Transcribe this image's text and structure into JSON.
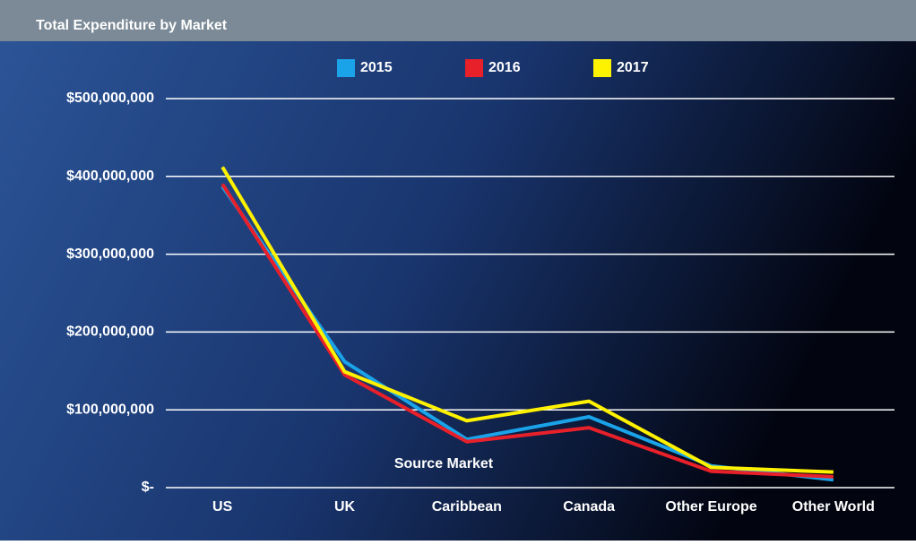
{
  "chart_data": {
    "type": "line",
    "title": "Total Expenditure by Market",
    "x_label": "Source Market",
    "categories": [
      "US",
      "UK",
      "Caribbean",
      "Canada",
      "Other Europe",
      "Other World"
    ],
    "series": [
      {
        "name": "2015",
        "color": "#1aa3e8",
        "values": [
          387000000,
          162000000,
          62000000,
          91000000,
          28000000,
          10000000
        ]
      },
      {
        "name": "2016",
        "color": "#e8202a",
        "values": [
          390000000,
          145000000,
          59000000,
          77000000,
          21000000,
          14000000
        ]
      },
      {
        "name": "2017",
        "color": "#fff200",
        "values": [
          412000000,
          149000000,
          86000000,
          111000000,
          26000000,
          20000000
        ]
      }
    ],
    "ylim": [
      0,
      500000000
    ],
    "yticks": [
      {
        "value": 0,
        "label": "$-"
      },
      {
        "value": 100000000,
        "label": "$100,000,000"
      },
      {
        "value": 200000000,
        "label": "$200,000,000"
      },
      {
        "value": 300000000,
        "label": "$300,000,000"
      },
      {
        "value": 400000000,
        "label": "$400,000,000"
      },
      {
        "value": 500000000,
        "label": "$500,000,000"
      }
    ],
    "grid": true,
    "legend": "top"
  }
}
